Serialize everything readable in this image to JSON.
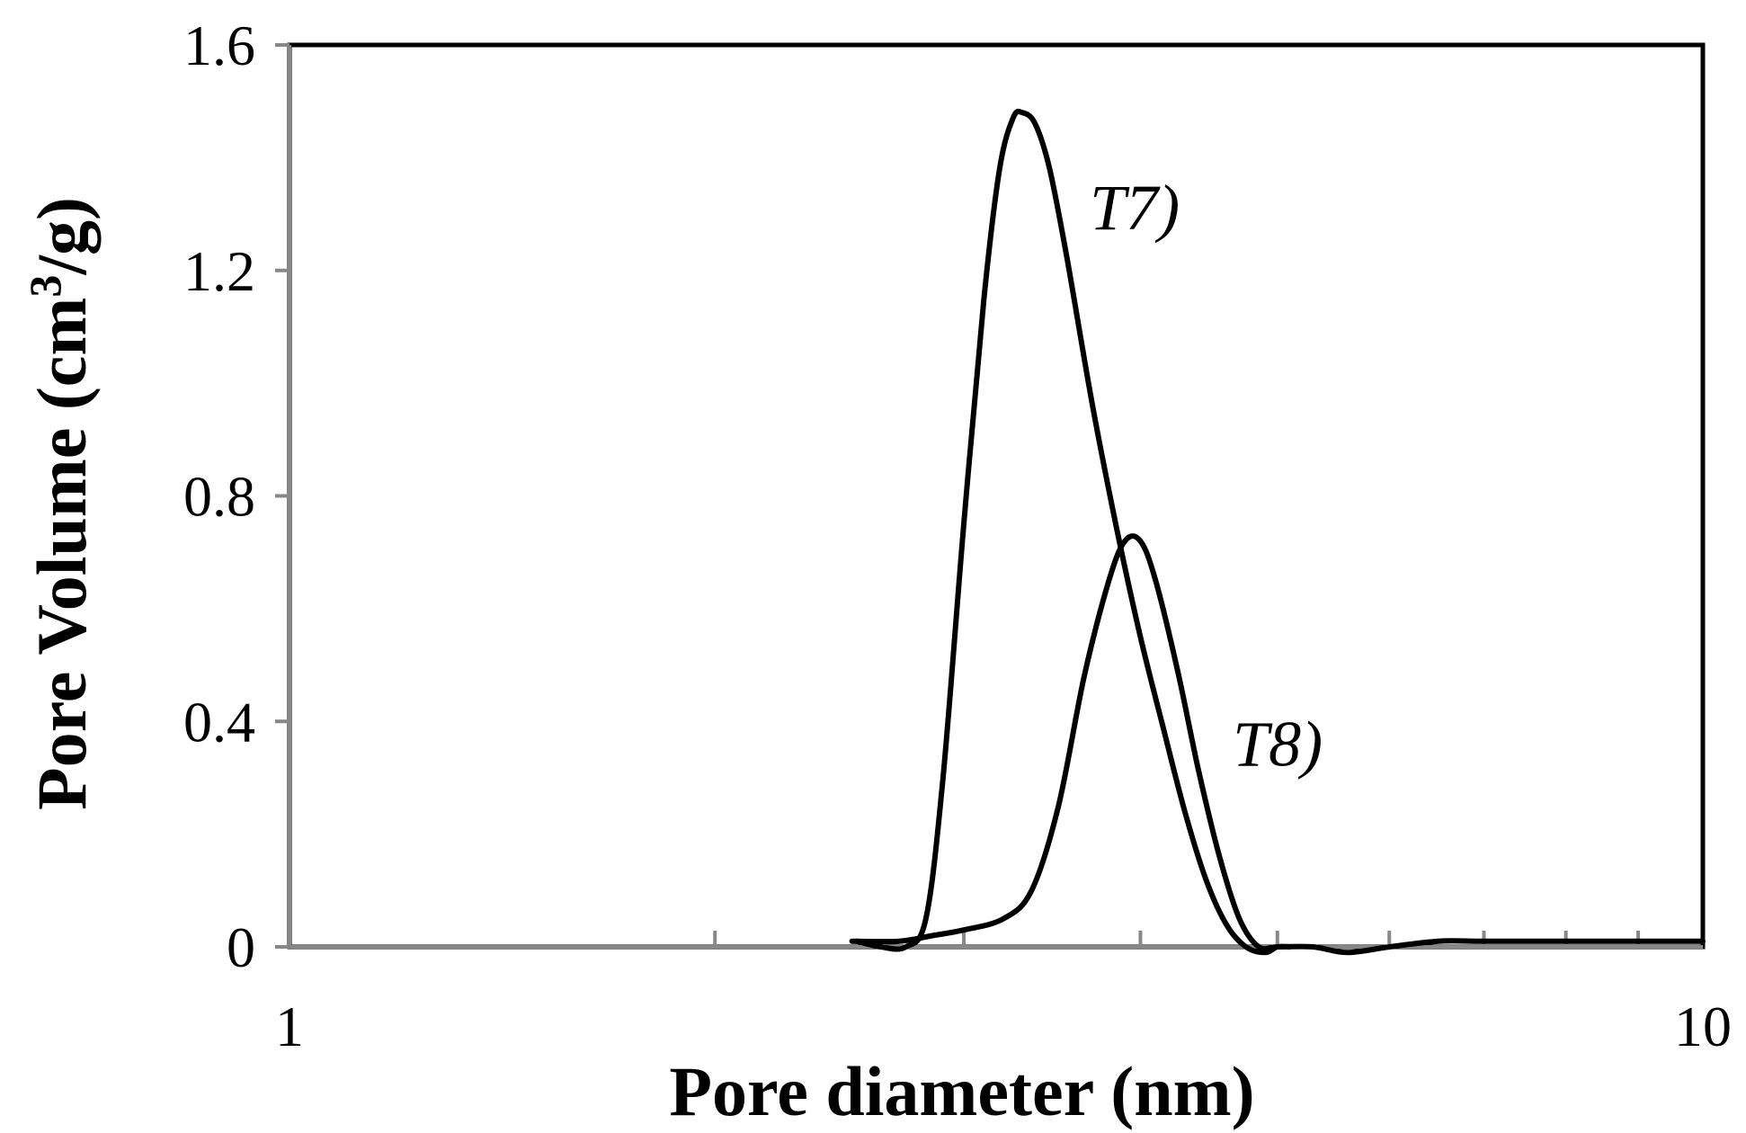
{
  "chart_data": {
    "type": "line",
    "xlabel": "Pore diameter (nm)",
    "ylabel_main": "Pore Volume (cm",
    "ylabel_sup": "3",
    "ylabel_end": "/g)",
    "xscale": "log",
    "xlim": [
      1,
      10
    ],
    "ylim": [
      0,
      1.6
    ],
    "x_ticks": [
      1,
      10
    ],
    "x_tick_labels": [
      "1",
      "10"
    ],
    "y_ticks": [
      0,
      0.4,
      0.8,
      1.2,
      1.6
    ],
    "y_tick_labels": [
      "0",
      "0.4",
      "0.8",
      "1.2",
      "1.6"
    ],
    "grid": false,
    "series": [
      {
        "name": "T7)",
        "x": [
          2.52,
          2.62,
          2.73,
          2.82,
          2.9,
          3.0,
          3.1,
          3.18,
          3.25,
          3.3,
          3.37,
          3.45,
          3.55,
          3.7,
          3.85,
          4.0,
          4.15,
          4.3,
          4.45,
          4.6,
          4.75,
          4.9,
          5.0,
          5.1
        ],
        "y": [
          0.01,
          0.0,
          0.0,
          0.05,
          0.3,
          0.75,
          1.15,
          1.38,
          1.47,
          1.48,
          1.46,
          1.38,
          1.22,
          0.96,
          0.74,
          0.55,
          0.39,
          0.24,
          0.12,
          0.04,
          0.0,
          -0.01,
          0.0,
          0.0
        ]
      },
      {
        "name": "T8)",
        "x": [
          2.5,
          2.7,
          2.85,
          3.0,
          3.2,
          3.35,
          3.5,
          3.65,
          3.8,
          3.9,
          4.0,
          4.1,
          4.25,
          4.4,
          4.55,
          4.7,
          4.85,
          5.0,
          5.3,
          5.6,
          6.0,
          6.5,
          7.0,
          8.0,
          9.0,
          10.0
        ],
        "y": [
          0.01,
          0.01,
          0.02,
          0.03,
          0.05,
          0.1,
          0.25,
          0.48,
          0.65,
          0.72,
          0.72,
          0.65,
          0.49,
          0.31,
          0.16,
          0.05,
          0.0,
          0.0,
          0.0,
          -0.01,
          0.0,
          0.01,
          0.01,
          0.01,
          0.01,
          0.01
        ]
      }
    ]
  }
}
